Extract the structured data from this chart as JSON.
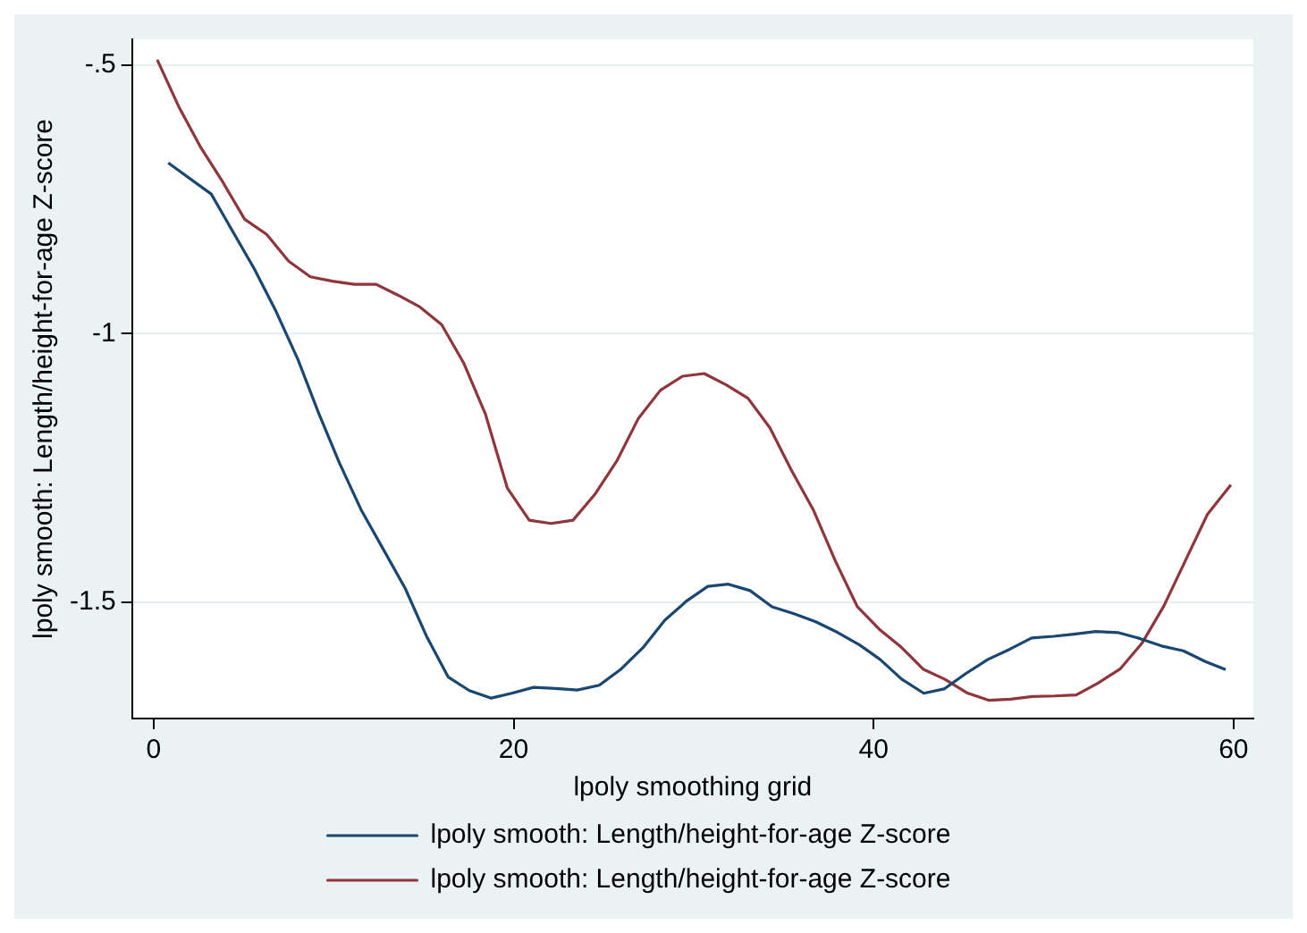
{
  "chart_data": {
    "type": "line",
    "xlabel": "lpoly smoothing grid",
    "ylabel": "lpoly smooth: Length/height-for-age Z-score",
    "xlim": [
      -1.2,
      61.1
    ],
    "xticks": [
      0,
      20,
      40,
      60
    ],
    "ylim": [
      -1.716,
      -0.452
    ],
    "yticks": [
      {
        "value": -0.5,
        "label": "-.5"
      },
      -1,
      -1.5
    ],
    "grid": "y",
    "legend": "bottom",
    "marker": "none",
    "line_style": "solid",
    "series": [
      {
        "name": "lpoly smooth: Length/height-for-age Z-score",
        "color": "#1a476f",
        "x": [
          0.81,
          3.2,
          5.59,
          6.81,
          8.02,
          9.16,
          10.33,
          11.55,
          12.76,
          13.98,
          15.15,
          16.37,
          17.54,
          18.76,
          19.89,
          21.11,
          22.33,
          23.54,
          24.76,
          25.97,
          27.19,
          28.4,
          29.62,
          30.79,
          31.93,
          33.14,
          34.36,
          35.58,
          36.79,
          38.01,
          39.22,
          40.36,
          41.57,
          42.79,
          43.92,
          45.14,
          46.35,
          47.57,
          48.78,
          50,
          51.13,
          52.35,
          53.57,
          54.78,
          56,
          57.21,
          58.43,
          59.56
        ],
        "values": [
          -0.682,
          -0.74,
          -0.879,
          -0.959,
          -1.048,
          -1.147,
          -1.241,
          -1.329,
          -1.401,
          -1.474,
          -1.562,
          -1.639,
          -1.664,
          -1.678,
          -1.669,
          -1.658,
          -1.66,
          -1.663,
          -1.654,
          -1.624,
          -1.584,
          -1.533,
          -1.497,
          -1.47,
          -1.466,
          -1.478,
          -1.508,
          -1.521,
          -1.536,
          -1.556,
          -1.579,
          -1.606,
          -1.643,
          -1.669,
          -1.661,
          -1.632,
          -1.606,
          -1.587,
          -1.566,
          -1.563,
          -1.559,
          -1.554,
          -1.556,
          -1.567,
          -1.581,
          -1.59,
          -1.61,
          -1.625
        ]
      },
      {
        "name": "lpoly smooth: Length/height-for-age Z-score",
        "color": "#90353b",
        "x": [
          0.2,
          1.42,
          2.63,
          3.85,
          5.06,
          6.28,
          7.5,
          8.71,
          9.93,
          11.14,
          12.36,
          13.57,
          14.79,
          16,
          17.22,
          18.44,
          19.65,
          20.87,
          22.08,
          23.3,
          24.51,
          25.73,
          26.94,
          28.16,
          29.38,
          30.59,
          31.81,
          33.02,
          34.24,
          35.45,
          36.67,
          37.88,
          39.1,
          40.32,
          41.53,
          42.75,
          43.96,
          45.18,
          46.39,
          47.61,
          48.82,
          50.04,
          51.26,
          52.47,
          53.69,
          54.91,
          56.12,
          57.34,
          58.55,
          59.85
        ],
        "values": [
          -0.49,
          -0.579,
          -0.654,
          -0.718,
          -0.787,
          -0.815,
          -0.865,
          -0.894,
          -0.902,
          -0.908,
          -0.908,
          -0.928,
          -0.95,
          -0.983,
          -1.054,
          -1.15,
          -1.287,
          -1.347,
          -1.353,
          -1.347,
          -1.299,
          -1.237,
          -1.157,
          -1.105,
          -1.079,
          -1.074,
          -1.095,
          -1.12,
          -1.175,
          -1.255,
          -1.329,
          -1.423,
          -1.508,
          -1.55,
          -1.583,
          -1.624,
          -1.643,
          -1.668,
          -1.682,
          -1.68,
          -1.675,
          -1.674,
          -1.672,
          -1.65,
          -1.624,
          -1.576,
          -1.507,
          -1.421,
          -1.336,
          -1.281
        ]
      }
    ]
  }
}
